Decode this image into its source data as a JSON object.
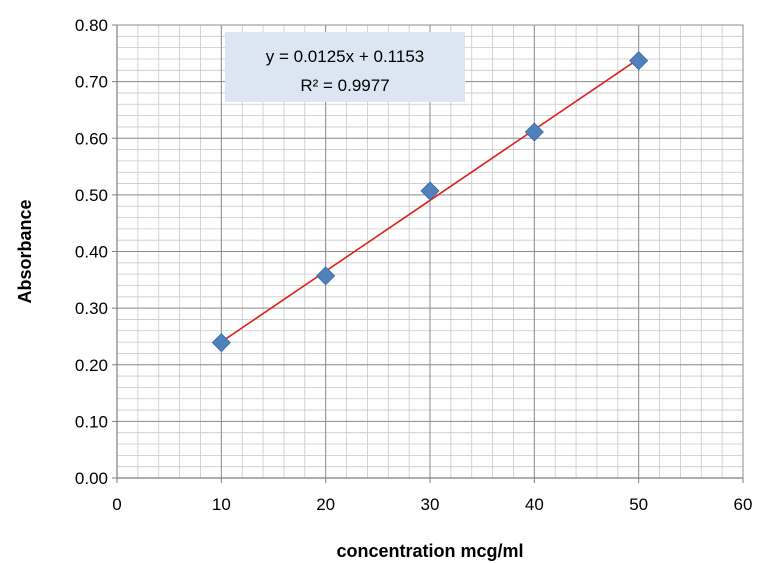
{
  "chart_data": {
    "type": "scatter",
    "title": "",
    "xlabel": "concentration mcg/ml",
    "ylabel": "Absorbance",
    "xlim": [
      0,
      60
    ],
    "ylim": [
      0,
      0.8
    ],
    "x_ticks": [
      "0",
      "10",
      "20",
      "30",
      "40",
      "50",
      "60"
    ],
    "y_ticks": [
      "0.00",
      "0.10",
      "0.20",
      "0.30",
      "0.40",
      "0.50",
      "0.60",
      "0.70",
      "0.80"
    ],
    "grid": true,
    "minor_grid": true,
    "points": [
      {
        "x": 10,
        "y": 0.239
      },
      {
        "x": 20,
        "y": 0.357
      },
      {
        "x": 30,
        "y": 0.507
      },
      {
        "x": 40,
        "y": 0.611
      },
      {
        "x": 50,
        "y": 0.737
      }
    ],
    "marker_color": "#4f81bd",
    "trendline": {
      "slope": 0.0125,
      "intercept": 0.1153,
      "x_range": [
        10,
        50
      ],
      "color": "#e0201b",
      "equation": "y = 0.0125x + 0.1153",
      "r_squared": "R² = 0.9977"
    },
    "label_box_color": "#dce6f2"
  }
}
